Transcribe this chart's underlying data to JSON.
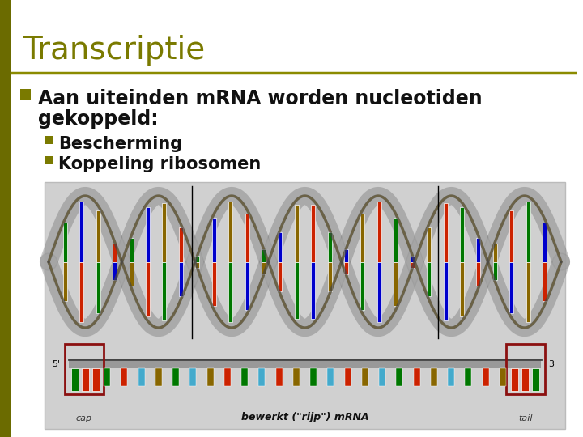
{
  "title": "Transcriptie",
  "title_color": "#7a7a00",
  "title_fontsize": 28,
  "left_bar_color": "#6b6b00",
  "divider_color": "#8b8b00",
  "bg_color": "#ffffff",
  "bullet_color": "#7a7a00",
  "bullet_symbol": "■",
  "main_text_line1": "Aan uiteinden mRNA worden nucleotiden",
  "main_text_line2": "gekoppeld:",
  "main_text_fontsize": 17,
  "sub_bullets": [
    "Bescherming",
    "Koppeling ribosomen"
  ],
  "sub_bullet_fontsize": 15,
  "image_bg": "#d0d0d0",
  "helix_colors": [
    "#cc2200",
    "#007700",
    "#0000cc",
    "#886600"
  ],
  "mrna_colors": [
    "#007700",
    "#cc2200",
    "#44aacc",
    "#886600"
  ],
  "cap_color": "#8B1010",
  "tail_color": "#8B1010"
}
